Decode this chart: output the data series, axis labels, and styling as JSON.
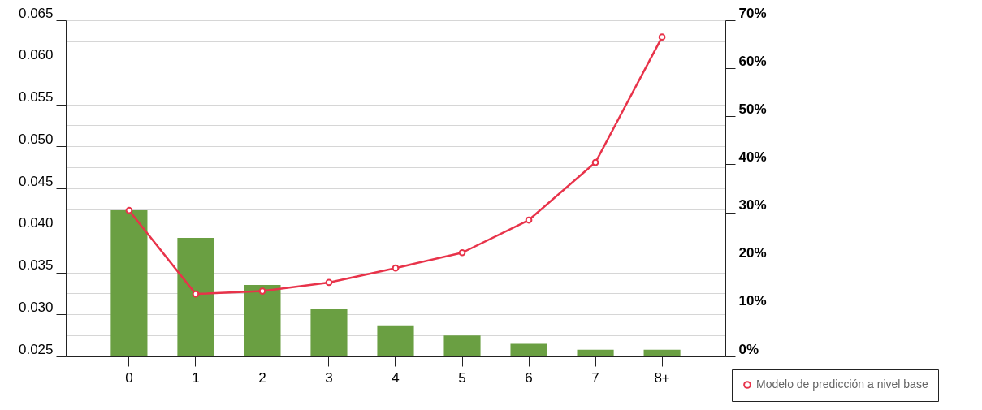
{
  "chart_data": {
    "type": "bar",
    "categories": [
      "0",
      "1",
      "2",
      "3",
      "4",
      "5",
      "6",
      "7",
      "8+"
    ],
    "series": [
      {
        "color": "#6a9f42",
        "values": [
          0.0424,
          0.0391,
          0.0335,
          0.0307,
          0.0287,
          0.0275,
          0.0265,
          0.0258,
          0.0258
        ]
      },
      {
        "type": "line",
        "axis": "y2",
        "name": "Modelo de predicción a nivel base",
        "color": "#e8334a",
        "values": [
          30.4,
          13.0,
          13.6,
          15.4,
          18.4,
          21.6,
          28.4,
          40.4,
          66.5
        ]
      }
    ],
    "ylim": [
      0.025,
      0.065
    ],
    "yticks": [
      0.025,
      {
        "value": 0.0275,
        "label": null
      },
      {
        "value": 0.03,
        "label": "0.030"
      },
      {
        "value": 0.0325,
        "label": null
      },
      0.035,
      {
        "value": 0.0375,
        "label": null
      },
      {
        "value": 0.04,
        "label": "0.040"
      },
      {
        "value": 0.0425,
        "label": null
      },
      0.045,
      {
        "value": 0.0475,
        "label": null
      },
      {
        "value": 0.05,
        "label": "0.050"
      },
      {
        "value": 0.0525,
        "label": null
      },
      0.055,
      {
        "value": 0.0575,
        "label": null
      },
      {
        "value": 0.06,
        "label": "0.060"
      },
      {
        "value": 0.0625,
        "label": null
      },
      0.065
    ],
    "y2lim": [
      0,
      70
    ],
    "y2ticks": [
      {
        "value": 0,
        "label": "0%"
      },
      {
        "value": 10,
        "label": "10%"
      },
      {
        "value": 20,
        "label": "20%"
      },
      {
        "value": 30,
        "label": "30%"
      },
      {
        "value": 40,
        "label": "40%"
      },
      {
        "value": 50,
        "label": "50%"
      },
      {
        "value": 60,
        "label": "60%"
      },
      {
        "value": 70,
        "label": "70%"
      }
    ],
    "grid": "y",
    "legend": "bottom right",
    "marker": "circle",
    "line_style": "solid"
  }
}
